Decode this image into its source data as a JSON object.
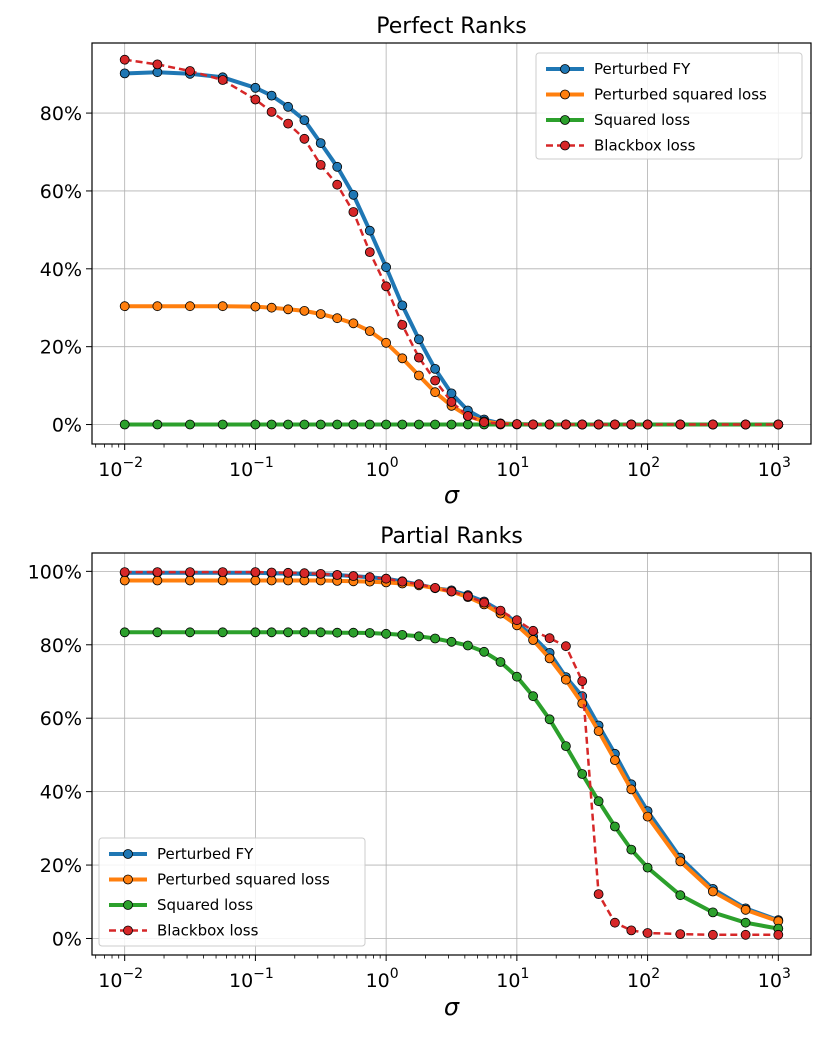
{
  "colors": {
    "blue": "#1f77b4",
    "orange": "#ff7f0e",
    "green": "#2ca02c",
    "red": "#d62728"
  },
  "chart_data": [
    {
      "type": "line",
      "title": "Perfect Ranks",
      "xlabel": "σ",
      "ylabel": "",
      "xscale": "log",
      "xlim_log10": [
        -2.25,
        3.25
      ],
      "ylim": [
        -5,
        98
      ],
      "y_ticks": [
        0,
        20,
        40,
        60,
        80
      ],
      "y_tick_labels": [
        "0%",
        "20%",
        "40%",
        "60%",
        "80%"
      ],
      "x_ticks": [
        {
          "base": "10",
          "exp": "−2",
          "log10": -2
        },
        {
          "base": "10",
          "exp": "−1",
          "log10": -1
        },
        {
          "base": "10",
          "exp": "0",
          "log10": 0
        },
        {
          "base": "10",
          "exp": "1",
          "log10": 1
        },
        {
          "base": "10",
          "exp": "2",
          "log10": 2
        },
        {
          "base": "10",
          "exp": "3",
          "log10": 3
        }
      ],
      "legend_position": "top-right",
      "x": [
        0.01,
        0.0178,
        0.0316,
        0.0562,
        0.1,
        0.133,
        0.178,
        0.237,
        0.316,
        0.422,
        0.562,
        0.75,
        1.0,
        1.33,
        1.78,
        2.37,
        3.16,
        4.22,
        5.62,
        7.5,
        10,
        13.3,
        17.8,
        23.7,
        31.6,
        42.2,
        56.2,
        75,
        100,
        178,
        316,
        562,
        1000
      ],
      "series": [
        {
          "name": "Perturbed FY",
          "color": "#1f77b4",
          "dashed": false,
          "values": [
            90.2,
            90.5,
            90.1,
            89.2,
            86.5,
            84.5,
            81.6,
            78.2,
            72.3,
            66.2,
            59.0,
            49.8,
            40.4,
            30.6,
            21.9,
            14.3,
            8.0,
            3.6,
            1.3,
            0.3,
            0.1,
            0,
            0,
            0,
            0,
            0,
            0,
            0,
            0,
            0,
            0,
            0,
            0
          ]
        },
        {
          "name": "Perturbed squared loss",
          "color": "#ff7f0e",
          "dashed": false,
          "values": [
            30.4,
            30.4,
            30.4,
            30.4,
            30.3,
            30.0,
            29.6,
            29.2,
            28.4,
            27.3,
            26.0,
            24.0,
            21.0,
            17.0,
            12.6,
            8.3,
            4.8,
            2.2,
            0.8,
            0.2,
            0.1,
            0,
            0,
            0,
            0,
            0,
            0,
            0,
            0,
            0,
            0,
            0,
            0
          ]
        },
        {
          "name": "Squared loss",
          "color": "#2ca02c",
          "dashed": false,
          "values": [
            0,
            0,
            0,
            0,
            0,
            0,
            0,
            0,
            0,
            0,
            0,
            0,
            0,
            0,
            0,
            0,
            0,
            0,
            0,
            0,
            0,
            0,
            0,
            0,
            0,
            0,
            0,
            0,
            0,
            0,
            0,
            0,
            0
          ]
        },
        {
          "name": "Blackbox loss",
          "color": "#d62728",
          "dashed": true,
          "values": [
            93.7,
            92.5,
            90.8,
            88.5,
            83.5,
            80.3,
            77.3,
            73.4,
            66.7,
            61.6,
            54.6,
            44.3,
            35.5,
            25.6,
            17.2,
            11.3,
            5.8,
            2.2,
            0.6,
            0.2,
            0.1,
            0,
            0,
            0,
            0,
            0,
            0,
            0,
            0,
            0,
            0,
            0,
            0
          ]
        }
      ]
    },
    {
      "type": "line",
      "title": "Partial Ranks",
      "xlabel": "σ",
      "ylabel": "",
      "xscale": "log",
      "xlim_log10": [
        -2.25,
        3.25
      ],
      "ylim": [
        -4.5,
        105
      ],
      "y_ticks": [
        0,
        20,
        40,
        60,
        80,
        100
      ],
      "y_tick_labels": [
        "0%",
        "20%",
        "40%",
        "60%",
        "80%",
        "100%"
      ],
      "x_ticks": [
        {
          "base": "10",
          "exp": "−2",
          "log10": -2
        },
        {
          "base": "10",
          "exp": "−1",
          "log10": -1
        },
        {
          "base": "10",
          "exp": "0",
          "log10": 0
        },
        {
          "base": "10",
          "exp": "1",
          "log10": 1
        },
        {
          "base": "10",
          "exp": "2",
          "log10": 2
        },
        {
          "base": "10",
          "exp": "3",
          "log10": 3
        }
      ],
      "legend_position": "bottom-left",
      "x": [
        0.01,
        0.0178,
        0.0316,
        0.0562,
        0.1,
        0.133,
        0.178,
        0.237,
        0.316,
        0.422,
        0.562,
        0.75,
        1.0,
        1.33,
        1.78,
        2.37,
        3.16,
        4.22,
        5.62,
        7.5,
        10,
        13.3,
        17.8,
        23.7,
        31.6,
        42.2,
        56.2,
        75,
        100,
        178,
        316,
        562,
        1000
      ],
      "series": [
        {
          "name": "Perturbed FY",
          "color": "#1f77b4",
          "dashed": false,
          "values": [
            99.6,
            99.6,
            99.6,
            99.6,
            99.6,
            99.5,
            99.4,
            99.3,
            99.2,
            99.0,
            98.7,
            98.4,
            98.0,
            97.3,
            96.4,
            95.4,
            94.8,
            93.5,
            91.8,
            89.2,
            86.0,
            82.2,
            77.8,
            71.2,
            66.0,
            58.0,
            50.3,
            42.0,
            34.7,
            22.0,
            13.5,
            8.2,
            5.0
          ]
        },
        {
          "name": "Perturbed squared loss",
          "color": "#ff7f0e",
          "dashed": false,
          "values": [
            97.5,
            97.5,
            97.5,
            97.5,
            97.5,
            97.5,
            97.5,
            97.5,
            97.5,
            97.4,
            97.3,
            97.2,
            97.0,
            96.7,
            96.2,
            95.4,
            94.5,
            93.0,
            91.0,
            88.5,
            85.3,
            81.3,
            76.3,
            70.5,
            64.0,
            56.5,
            48.6,
            40.6,
            33.2,
            21.0,
            12.8,
            7.8,
            4.7
          ]
        },
        {
          "name": "Squared loss",
          "color": "#2ca02c",
          "dashed": false,
          "values": [
            83.4,
            83.4,
            83.4,
            83.4,
            83.4,
            83.4,
            83.4,
            83.4,
            83.4,
            83.3,
            83.3,
            83.2,
            83.0,
            82.7,
            82.3,
            81.7,
            80.8,
            79.8,
            78.1,
            75.3,
            71.3,
            66.0,
            59.7,
            52.4,
            44.8,
            37.4,
            30.5,
            24.2,
            19.3,
            11.8,
            7.1,
            4.3,
            2.7
          ]
        },
        {
          "name": "Blackbox loss",
          "color": "#d62728",
          "dashed": true,
          "values": [
            99.8,
            99.8,
            99.8,
            99.8,
            99.8,
            99.7,
            99.6,
            99.5,
            99.3,
            99.0,
            98.7,
            98.4,
            98.0,
            97.2,
            96.5,
            95.5,
            94.5,
            93.2,
            91.5,
            89.3,
            86.7,
            83.8,
            81.8,
            79.6,
            70.1,
            12.1,
            4.3,
            2.2,
            1.5,
            1.2,
            1.0,
            1.0,
            1.0
          ]
        }
      ]
    }
  ]
}
